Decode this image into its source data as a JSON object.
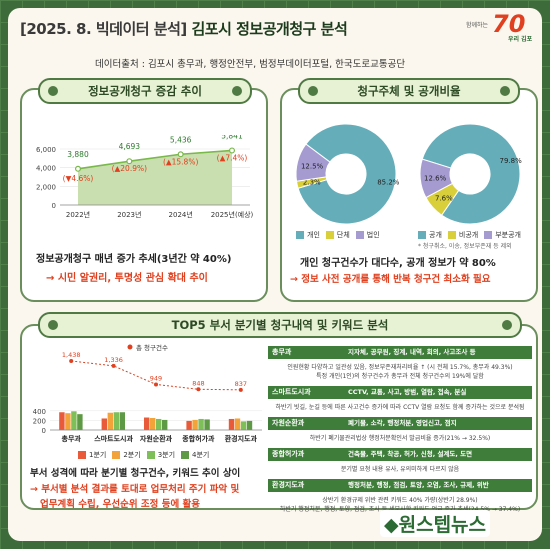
{
  "header": {
    "year_tag": "[2025. 8. 빅데이터 분석]",
    "title": "김포시 정보공개청구 분석",
    "logo_top": "함께하는",
    "logo_num": "70",
    "logo_bottom": "우리 김포",
    "source": "데이터출처 : 김포시 총무과, 행정안전부, 범정부데이터포털, 한국도로교통공단"
  },
  "panel1": {
    "heading": "정보공개청구 증감 추이",
    "caption": "정보공개청구 매년 증가 추세(3년간 약 40%)",
    "caption2": "→ 시민 알권리, 투명성 관심 확대 추이"
  },
  "panel2": {
    "heading": "청구주체 및 공개비율",
    "footnote": "* 청구취소, 이송, 정보부존재 등 제외",
    "caption": "개인 청구건수가 대다수, 공개 정보가 약 80%",
    "caption2": "→ 정보 사전 공개를 통해 반복 청구건 최소화 필요"
  },
  "panel3": {
    "heading": "TOP5 부서 분기별 청구내역 및 키워드 분석",
    "caption": "부서 성격에 따라 분기별 청구건수, 키워드 추이 상이",
    "caption2a": "→ 부서별 분석 결과를 토대로 업무처리 주기 파악 및",
    "caption2b": "업무계획 수립, 우선순위 조정 등에 활용"
  },
  "chart_data": [
    {
      "type": "area",
      "categories": [
        "2022년",
        "2023년",
        "2024년",
        "2025년(예상)"
      ],
      "values": [
        3880,
        4693,
        5436,
        5841
      ],
      "value_labels": [
        "3,880",
        "4,693",
        "5,436",
        "5,841"
      ],
      "change_labels": [
        "(▼4.6%)",
        "(▲20.9%)",
        "(▲15.8%)",
        "(▲7.4%)"
      ],
      "yticks": [
        "0",
        "2,000",
        "4,000",
        "6,000"
      ],
      "ylim": [
        0,
        6000
      ],
      "colors": {
        "line": "#79b84a",
        "fill": "#c9dfb0"
      }
    },
    {
      "type": "pie",
      "labels": [
        "개인",
        "단체",
        "법인"
      ],
      "value_labels": [
        "85.2%",
        "2.3%",
        "12.5%"
      ],
      "values": [
        85.2,
        2.3,
        12.5
      ],
      "colors": [
        "#65adb9",
        "#d8cf3a",
        "#a59bd1"
      ]
    },
    {
      "type": "pie",
      "labels": [
        "공개",
        "비공개",
        "부분공개"
      ],
      "value_labels": [
        "79.8%",
        "7.6%",
        "12.6%"
      ],
      "values": [
        79.8,
        7.6,
        12.6
      ],
      "colors": [
        "#65adb9",
        "#d8cf3a",
        "#a59bd1"
      ]
    },
    {
      "type": "bar",
      "categories": [
        "총무과",
        "스마트도시과",
        "자원순환과",
        "종합허가과",
        "환경지도과"
      ],
      "line_series": {
        "name": "총 청구건수",
        "values": [
          1438,
          1336,
          949,
          848,
          837
        ],
        "value_labels": [
          "1,438",
          "1,336",
          "949",
          "848",
          "837"
        ]
      },
      "series": [
        {
          "name": "1분기",
          "values": [
            370,
            240,
            260,
            190,
            230
          ]
        },
        {
          "name": "2분기",
          "values": [
            350,
            360,
            250,
            210,
            240
          ]
        },
        {
          "name": "3분기",
          "values": [
            390,
            370,
            230,
            230,
            180
          ]
        },
        {
          "name": "4분기",
          "values": [
            330,
            370,
            210,
            220,
            190
          ]
        }
      ],
      "yticks": [
        "0",
        "200",
        "400"
      ],
      "ylim": [
        0,
        1500
      ],
      "colors": {
        "line": "#e0401f",
        "q1": "#e85a3a",
        "q2": "#f2a33a",
        "q3": "#7fbf5a",
        "q4": "#5e9a45"
      }
    }
  ],
  "keywords": [
    {
      "dept": "총무과",
      "words": "지자체, 공무원, 징계, 내역, 회의, 사고조사 등",
      "notes": [
        "인원현황 다양하고 일관성 있음, 정보부존재처리비율 ↑ (시 전체 15.7%, 총무과 49.3%)",
        "특정 개인(1인)의 청구건수가 총무과 전체 청구건수의 19%에 달함"
      ]
    },
    {
      "dept": "스마트도시과",
      "words": "CCTV, 교통, 사고, 방범, 열람, 접속, 분실",
      "notes": [
        "하반기 빗길, 눈길 등에 따른 사고건수 증가에 따라 CCTV 열람 요청도 함께 증가하는 것으로 분석됨"
      ]
    },
    {
      "dept": "자원순환과",
      "words": "폐기물, 소각, 행정처분, 영업신고, 점지",
      "notes": [
        "하반기 폐기물관리법상 행정처분확인서 발급비율 증가(21% → 32.5%)"
      ]
    },
    {
      "dept": "종합허가과",
      "words": "건축물, 주택, 착공, 허가, 신청, 설계도, 도면",
      "notes": [
        "분기별 요청 내용 유사, 유의미하게 다르지 않음"
      ]
    },
    {
      "dept": "환경지도과",
      "words": "행정처분, 행정, 점검, 토양, 오염, 조사, 규제, 위반",
      "notes": [
        "상반기 환경규제 위반 관련 키워드 40% 가량(상반기 28.9%)",
        "하반기 행정처분, 행정, 토양, 점검, 조사 등 세부사항 키워드 언급 증가 추세(24.5% → 37.4%)"
      ]
    }
  ],
  "watermark": "◆원스텝뉴스"
}
